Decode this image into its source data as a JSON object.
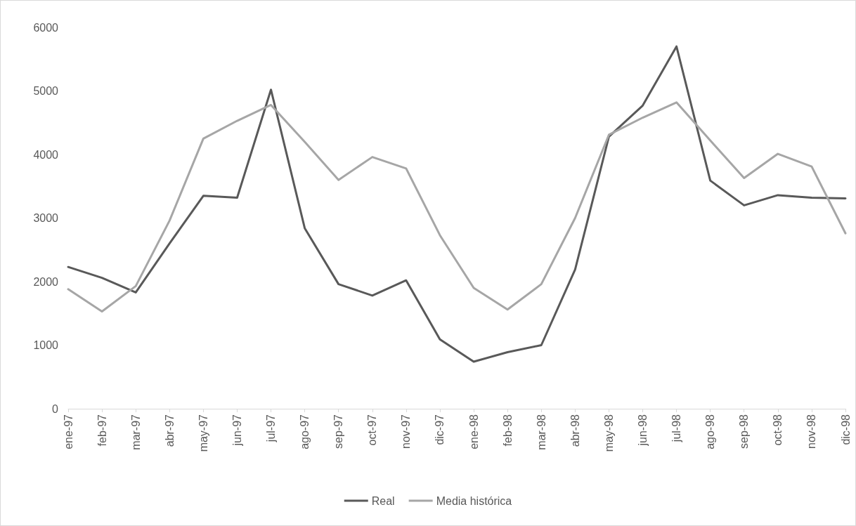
{
  "chart_data": {
    "type": "line",
    "categories": [
      "ene-97",
      "feb-97",
      "mar-97",
      "abr-97",
      "may-97",
      "jun-97",
      "jul-97",
      "ago-97",
      "sep-97",
      "oct-97",
      "nov-97",
      "dic-97",
      "ene-98",
      "feb-98",
      "mar-98",
      "abr-98",
      "may-98",
      "jun-98",
      "jul-98",
      "ago-98",
      "sep-98",
      "oct-98",
      "nov-98",
      "dic-98"
    ],
    "series": [
      {
        "name": "Real",
        "color": "#595959",
        "values": [
          2230,
          2060,
          1830,
          2600,
          3350,
          3320,
          5020,
          2840,
          1960,
          1780,
          2020,
          1090,
          740,
          890,
          1000,
          2190,
          4280,
          4770,
          5700,
          3590,
          3200,
          3360,
          3320,
          3310
        ]
      },
      {
        "name": "Media histórica",
        "color": "#a6a6a6",
        "values": [
          1880,
          1530,
          1930,
          2960,
          4250,
          4530,
          4780,
          4200,
          3600,
          3960,
          3780,
          2730,
          1900,
          1560,
          1960,
          3000,
          4310,
          4580,
          4820,
          4220,
          3630,
          4010,
          3810,
          2760
        ]
      }
    ],
    "ylim": [
      0,
      6000
    ],
    "yticks": [
      0,
      1000,
      2000,
      3000,
      4000,
      5000,
      6000
    ],
    "grid": false,
    "legend": "bottom",
    "marker": "none",
    "line_style": "solid"
  }
}
